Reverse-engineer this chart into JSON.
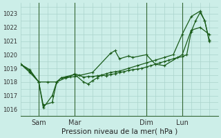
{
  "background_color": "#cceee8",
  "grid_color": "#aad4cc",
  "line_color": "#1a5c1a",
  "marker_color": "#1a5c1a",
  "xlabel": "Pression niveau de la mer( hPa )",
  "ylim": [
    1015.5,
    1023.8
  ],
  "yticks": [
    1016,
    1017,
    1018,
    1019,
    1020,
    1021,
    1022,
    1023
  ],
  "xtick_labels": [
    "Sam",
    "Mar",
    "Dim",
    "Lun"
  ],
  "xtick_positions": [
    8,
    24,
    56,
    72
  ],
  "vline_positions": [
    8,
    24,
    56,
    72
  ],
  "xlim": [
    0,
    88
  ],
  "line1_x": [
    0,
    4,
    8,
    12,
    16,
    20,
    24,
    32,
    40,
    42,
    44,
    48,
    50,
    56,
    60,
    64,
    72,
    76,
    80,
    84
  ],
  "line1_y": [
    1019.3,
    1018.9,
    1018.0,
    1018.0,
    1018.0,
    1018.3,
    1018.4,
    1018.7,
    1020.1,
    1020.3,
    1019.7,
    1019.9,
    1019.8,
    1020.0,
    1019.3,
    1019.2,
    1020.0,
    1021.8,
    1022.0,
    1021.5
  ],
  "line2_x": [
    0,
    4,
    8,
    10,
    14,
    16,
    18,
    20,
    22,
    24,
    26,
    28,
    30,
    32,
    34,
    36,
    38,
    40,
    42,
    44,
    46,
    48,
    50,
    52,
    54,
    56,
    58,
    60,
    62,
    64,
    66,
    68,
    70,
    72,
    74,
    76,
    78,
    80,
    82,
    84
  ],
  "line2_y": [
    1019.3,
    1018.8,
    1018.0,
    1016.1,
    1017.0,
    1018.0,
    1018.3,
    1018.35,
    1018.4,
    1018.6,
    1018.5,
    1018.35,
    1018.4,
    1018.4,
    1018.45,
    1018.5,
    1018.45,
    1018.55,
    1018.6,
    1018.7,
    1018.75,
    1018.85,
    1018.9,
    1018.95,
    1019.0,
    1019.1,
    1019.2,
    1019.3,
    1019.4,
    1019.5,
    1019.6,
    1019.7,
    1019.8,
    1019.85,
    1020.0,
    1021.7,
    1022.5,
    1023.1,
    1022.5,
    1021.0
  ],
  "line3_x": [
    0,
    4,
    8,
    10,
    14,
    16,
    18,
    24,
    28,
    30,
    32,
    34,
    36,
    38,
    40,
    42,
    44,
    48,
    52,
    56,
    60,
    64,
    68,
    72,
    76,
    80,
    82,
    84
  ],
  "line3_y": [
    1019.3,
    1018.7,
    1018.0,
    1016.3,
    1016.5,
    1018.0,
    1018.3,
    1018.55,
    1018.0,
    1017.85,
    1018.1,
    1018.3,
    1018.5,
    1018.6,
    1018.7,
    1018.75,
    1018.8,
    1019.0,
    1019.2,
    1019.4,
    1019.6,
    1019.8,
    1020.0,
    1021.5,
    1022.8,
    1023.2,
    1022.5,
    1021.1
  ]
}
